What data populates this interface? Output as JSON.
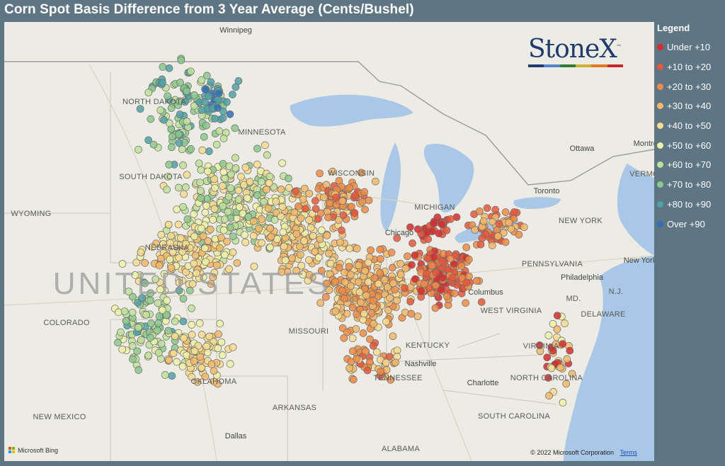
{
  "title": "Corn Spot Basis Difference from 3 Year Average (Cents/Bushel)",
  "legend": {
    "title": "Legend",
    "items": [
      {
        "label": "Under +10",
        "color": "#d62b2b"
      },
      {
        "label": "+10 to +20",
        "color": "#e9573a"
      },
      {
        "label": "+20 to +30",
        "color": "#f08c44"
      },
      {
        "label": "+30 to +40",
        "color": "#f5b867"
      },
      {
        "label": "+40 to +50",
        "color": "#f9dc8e"
      },
      {
        "label": "+50 to +60",
        "color": "#eef3a5"
      },
      {
        "label": "+60 to +70",
        "color": "#bfe29a"
      },
      {
        "label": "+70 to +80",
        "color": "#8cc98c"
      },
      {
        "label": "+80 to +90",
        "color": "#4fa2a8"
      },
      {
        "label": "Over +90",
        "color": "#2f6fb6"
      }
    ]
  },
  "map": {
    "country_label": "UNITED STATES",
    "states": [
      "NORTH DAKOTA",
      "SOUTH DAKOTA",
      "MINNESOTA",
      "WISCONSIN",
      "WYOMING",
      "NEBRASKA",
      "COLORADO",
      "MISSOURI",
      "KENTUCKY",
      "TENNESSEE",
      "OKLAHOMA",
      "ARKANSAS",
      "NEW MEXICO",
      "ALABAMA",
      "WEST VIRGINIA",
      "VIRGINIA",
      "NORTH CAROLINA",
      "SOUTH CAROLINA",
      "PENNSYLVANIA",
      "NEW YORK",
      "MICHIGAN",
      "MD.",
      "DELAWARE",
      "N.J.",
      "VERMO"
    ],
    "cities": [
      "Winnipeg",
      "Chicago",
      "Columbus",
      "Philadelphia",
      "New York",
      "Nashville",
      "Charlotte",
      "Dallas",
      "Ottawa",
      "Toronto",
      "Montreal"
    ]
  },
  "logo": {
    "text": "StoneX",
    "tm": "™",
    "bar_colors": [
      "#1f3a6e",
      "#4f86c6",
      "#2e7d32",
      "#c9b037",
      "#e07a1f",
      "#c62828"
    ]
  },
  "attribution": {
    "provider": "Microsoft Bing",
    "copyright": "© 2022 Microsoft Corporation",
    "terms": "Terms"
  }
}
